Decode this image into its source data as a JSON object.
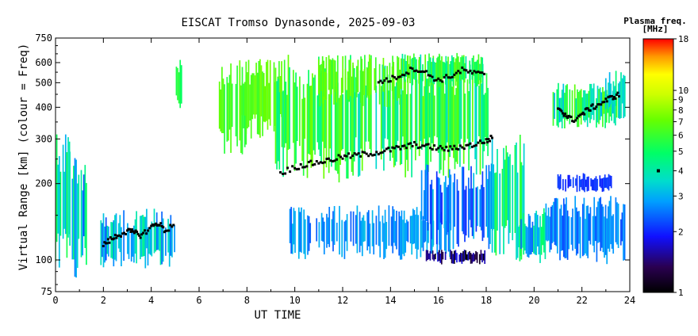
{
  "chart_data": {
    "type": "heatmap",
    "title": "EISCAT Tromso Dynasonde, 2025-09-03",
    "xlabel": "UT TIME",
    "ylabel": "Virtual Range [km] (colour = Freq)",
    "xlim": [
      0,
      24
    ],
    "ylim": [
      75,
      750
    ],
    "y_scale": "log",
    "x_ticks": [
      0,
      2,
      4,
      6,
      8,
      10,
      12,
      14,
      16,
      18,
      20,
      22,
      24
    ],
    "y_ticks": [
      75,
      100,
      200,
      300,
      400,
      500,
      600,
      750
    ],
    "grid": false,
    "colorbar": {
      "title_line1": "Plasma freq.",
      "title_line2": "[MHz]",
      "scale": "log",
      "range": [
        1,
        18
      ],
      "ticks": [
        1,
        2,
        3,
        4,
        5,
        6,
        7,
        8,
        9,
        10,
        18
      ],
      "legend_placement": "right"
    },
    "f_layer_trace_freq": 4,
    "regions": [
      {
        "x": [
          0.0,
          0.6
        ],
        "y": [
          85,
          340
        ],
        "freq": [
          2.5,
          5.5
        ]
      },
      {
        "x": [
          0.6,
          1.3
        ],
        "y": [
          85,
          280
        ],
        "freq": [
          2.2,
          5.0
        ]
      },
      {
        "x": [
          1.9,
          5.0
        ],
        "y": [
          92,
          160
        ],
        "freq": [
          2.2,
          4.5
        ]
      },
      {
        "x": [
          5.0,
          5.3
        ],
        "y": [
          380,
          620
        ],
        "freq": [
          5.0,
          6.0
        ]
      },
      {
        "x": [
          6.8,
          8.0
        ],
        "y": [
          260,
          600
        ],
        "freq": [
          5.5,
          7.0
        ]
      },
      {
        "x": [
          7.7,
          9.5
        ],
        "y": [
          290,
          620
        ],
        "freq": [
          6.0,
          7.5
        ]
      },
      {
        "x": [
          9.2,
          12.5
        ],
        "y": [
          200,
          650
        ],
        "freq": [
          4.0,
          7.5
        ]
      },
      {
        "x": [
          12.5,
          18.2
        ],
        "y": [
          210,
          650
        ],
        "freq": [
          3.5,
          7.5
        ]
      },
      {
        "x": [
          11.0,
          14.5
        ],
        "y": [
          400,
          650
        ],
        "freq": [
          6.0,
          7.5
        ]
      },
      {
        "x": [
          14.5,
          18.0
        ],
        "y": [
          480,
          660
        ],
        "freq": [
          4.0,
          7.0
        ]
      },
      {
        "x": [
          9.8,
          16.5
        ],
        "y": [
          100,
          165
        ],
        "freq": [
          2.3,
          3.2
        ]
      },
      {
        "x": [
          15.3,
          18.3
        ],
        "y": [
          110,
          240
        ],
        "freq": [
          2.0,
          3.2
        ]
      },
      {
        "x": [
          15.5,
          18.0
        ],
        "y": [
          96,
          110
        ],
        "freq": [
          1.0,
          1.8
        ]
      },
      {
        "x": [
          18.2,
          19.6
        ],
        "y": [
          100,
          330
        ],
        "freq": [
          3.0,
          6.0
        ]
      },
      {
        "x": [
          19.3,
          20.5
        ],
        "y": [
          96,
          160
        ],
        "freq": [
          2.2,
          5.0
        ]
      },
      {
        "x": [
          20.5,
          23.8
        ],
        "y": [
          96,
          180
        ],
        "freq": [
          2.2,
          3.0
        ]
      },
      {
        "x": [
          21.0,
          23.3
        ],
        "y": [
          185,
          220
        ],
        "freq": [
          1.9,
          2.2
        ]
      },
      {
        "x": [
          20.8,
          23.5
        ],
        "y": [
          330,
          500
        ],
        "freq": [
          3.0,
          7.0
        ]
      },
      {
        "x": [
          23.0,
          23.8
        ],
        "y": [
          360,
          560
        ],
        "freq": [
          3.0,
          5.0
        ]
      }
    ],
    "traces": [
      {
        "name": "F-layer trace",
        "x": [
          9.4,
          10.0,
          10.5,
          11.0,
          11.5,
          12.0,
          12.5,
          13.0,
          13.5,
          14.0,
          14.5,
          15.0,
          15.5,
          16.0,
          16.5,
          17.0,
          17.5,
          18.0,
          18.3
        ],
        "y": [
          220,
          232,
          238,
          243,
          248,
          255,
          258,
          262,
          266,
          272,
          278,
          285,
          280,
          276,
          274,
          280,
          285,
          295,
          305
        ]
      },
      {
        "name": "upper trace",
        "x": [
          13.5,
          14.0,
          14.5,
          15.0,
          15.5,
          16.0,
          16.5,
          17.0,
          17.5,
          18.0
        ],
        "y": [
          505,
          515,
          540,
          570,
          545,
          510,
          530,
          560,
          545,
          535
        ]
      },
      {
        "name": "late trace",
        "x": [
          21.0,
          21.3,
          21.6,
          22.0,
          22.3,
          22.6,
          23.0,
          23.3,
          23.6
        ],
        "y": [
          400,
          375,
          355,
          375,
          395,
          405,
          425,
          440,
          450
        ]
      },
      {
        "name": "early trace",
        "x": [
          2.0,
          2.3,
          2.6,
          3.0,
          3.3,
          3.6,
          4.0,
          4.3,
          4.6,
          5.0
        ],
        "y": [
          115,
          120,
          125,
          130,
          128,
          125,
          135,
          140,
          130,
          140
        ]
      }
    ]
  }
}
